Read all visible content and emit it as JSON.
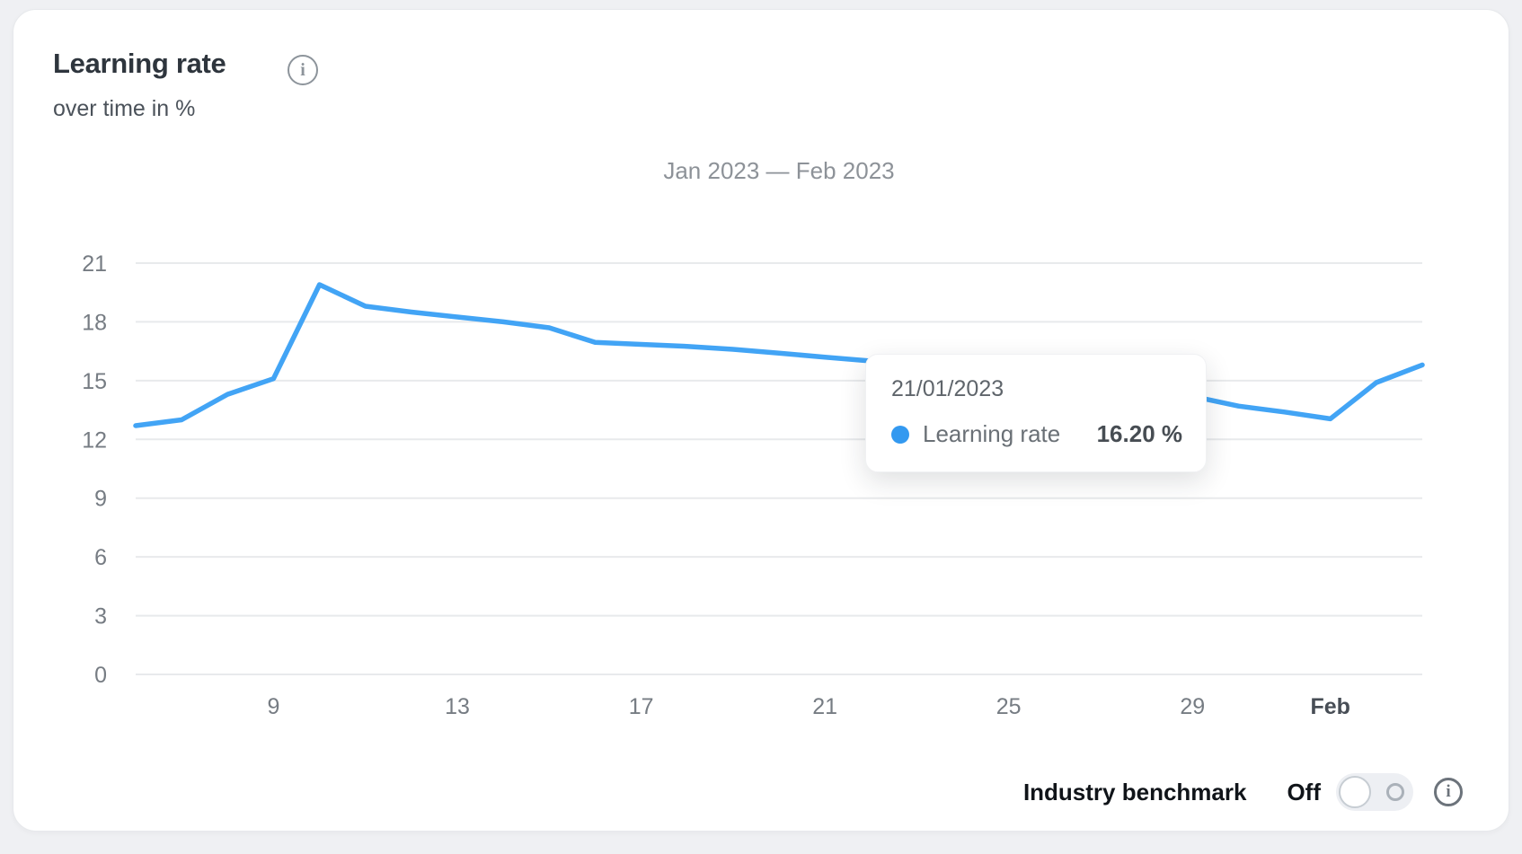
{
  "header": {
    "title": "Learning rate",
    "subtitle": "over time in %",
    "info_icon_glyph": "i"
  },
  "chart_data": {
    "type": "line",
    "title": "Jan 2023 — Feb 2023",
    "ylabel": "over time in %",
    "ylim": [
      0,
      21
    ],
    "y_ticks": [
      0,
      3,
      6,
      9,
      12,
      15,
      18,
      21
    ],
    "grid": "horizontal",
    "x_ticks": [
      {
        "index": 3,
        "label": "9",
        "bold": false
      },
      {
        "index": 7,
        "label": "13",
        "bold": false
      },
      {
        "index": 11,
        "label": "17",
        "bold": false
      },
      {
        "index": 15,
        "label": "21",
        "bold": false
      },
      {
        "index": 19,
        "label": "25",
        "bold": false
      },
      {
        "index": 23,
        "label": "29",
        "bold": false
      },
      {
        "index": 26,
        "label": "Feb",
        "bold": true
      }
    ],
    "series": [
      {
        "name": "Learning rate",
        "color": "#42A4F5",
        "points": [
          {
            "date": "06/01/2023",
            "value": 12.7
          },
          {
            "date": "07/01/2023",
            "value": 13.0
          },
          {
            "date": "08/01/2023",
            "value": 14.3
          },
          {
            "date": "09/01/2023",
            "value": 15.1
          },
          {
            "date": "10/01/2023",
            "value": 19.9
          },
          {
            "date": "11/01/2023",
            "value": 18.8
          },
          {
            "date": "12/01/2023",
            "value": 18.5
          },
          {
            "date": "13/01/2023",
            "value": 18.25
          },
          {
            "date": "14/01/2023",
            "value": 18.0
          },
          {
            "date": "15/01/2023",
            "value": 17.7
          },
          {
            "date": "16/01/2023",
            "value": 16.95
          },
          {
            "date": "17/01/2023",
            "value": 16.85
          },
          {
            "date": "18/01/2023",
            "value": 16.75
          },
          {
            "date": "19/01/2023",
            "value": 16.6
          },
          {
            "date": "20/01/2023",
            "value": 16.4
          },
          {
            "date": "21/01/2023",
            "value": 16.2
          },
          {
            "date": "22/01/2023",
            "value": 16.0
          },
          {
            "date": "23/01/2023",
            "value": 15.75
          },
          {
            "date": "24/01/2023",
            "value": 15.5
          },
          {
            "date": "25/01/2023",
            "value": 15.25
          },
          {
            "date": "26/01/2023",
            "value": 15.0
          },
          {
            "date": "27/01/2023",
            "value": 14.7
          },
          {
            "date": "28/01/2023",
            "value": 14.45
          },
          {
            "date": "29/01/2023",
            "value": 14.2
          },
          {
            "date": "30/01/2023",
            "value": 13.7
          },
          {
            "date": "31/01/2023",
            "value": 13.4
          },
          {
            "date": "01/02/2023",
            "value": 13.05
          },
          {
            "date": "02/02/2023",
            "value": 14.9
          },
          {
            "date": "03/02/2023",
            "value": 15.8
          }
        ]
      }
    ],
    "legend_position": "none",
    "colors": {
      "grid": "#e8eaec",
      "tick_label": "#767c83",
      "tick_label_bold": "#474d55",
      "heading": "#8d9298"
    }
  },
  "tooltip": {
    "date": "21/01/2023",
    "series_name": "Learning rate",
    "value": "16.20 %",
    "dot_color": "#3399F0"
  },
  "benchmark": {
    "label": "Industry benchmark",
    "state_label": "Off",
    "toggle_on": false,
    "info_icon_glyph": "i"
  }
}
